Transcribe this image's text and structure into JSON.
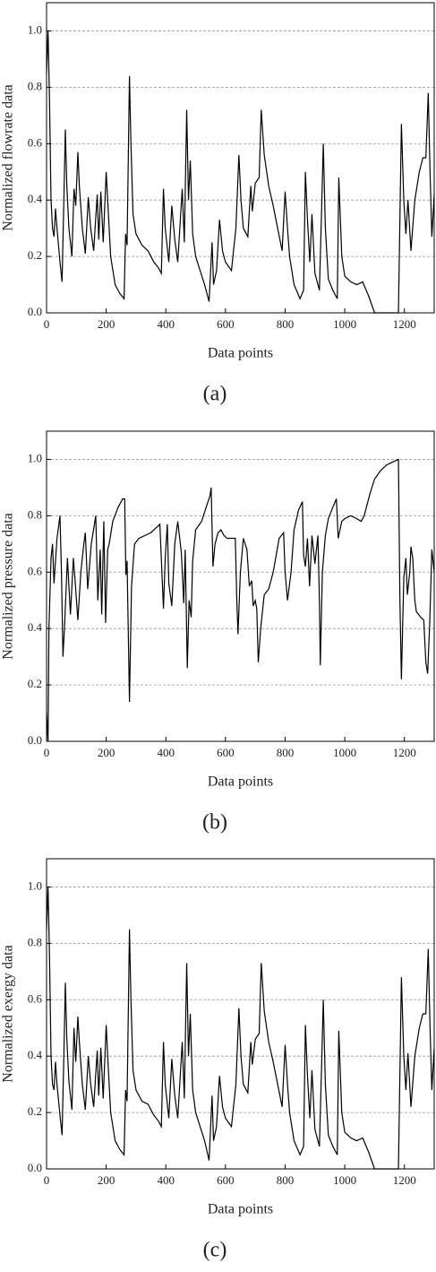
{
  "chart_data": [
    {
      "type": "line",
      "xlabel": "Data points",
      "ylabel": "Normalized flowrate data",
      "caption": "(a)",
      "xlim": [
        0,
        1300
      ],
      "xticks": [
        0,
        200,
        400,
        600,
        800,
        1000,
        1200
      ],
      "ylim": [
        0,
        1.1
      ],
      "yticks": [
        {
          "value": 0,
          "label": "0.0"
        },
        0.2,
        0.4,
        0.6,
        0.8,
        {
          "value": 1,
          "label": "1.0"
        }
      ],
      "grid": true,
      "x": [
        0,
        5,
        10,
        15,
        20,
        25,
        30,
        35,
        45,
        52,
        58,
        63,
        68,
        75,
        85,
        92,
        98,
        105,
        110,
        120,
        130,
        140,
        148,
        158,
        170,
        175,
        182,
        190,
        200,
        205,
        215,
        230,
        245,
        260,
        265,
        270,
        278,
        283,
        290,
        300,
        320,
        340,
        360,
        375,
        385,
        392,
        398,
        410,
        420,
        430,
        440,
        455,
        462,
        470,
        476,
        482,
        490,
        500,
        515,
        530,
        545,
        555,
        560,
        570,
        580,
        590,
        600,
        620,
        635,
        645,
        652,
        660,
        675,
        685,
        690,
        700,
        713,
        720,
        730,
        745,
        760,
        775,
        790,
        800,
        808,
        815,
        830,
        850,
        862,
        868,
        875,
        883,
        890,
        900,
        915,
        922,
        928,
        935,
        945,
        960,
        975,
        980,
        990,
        1000,
        1020,
        1040,
        1060,
        1080,
        1100,
        1180,
        1190,
        1198,
        1205,
        1212,
        1222,
        1235,
        1250,
        1262,
        1272,
        1280,
        1286,
        1292,
        1300
      ],
      "series": [
        {
          "color": "#000000",
          "values": [
            0.85,
            1.0,
            0.75,
            0.4,
            0.3,
            0.27,
            0.37,
            0.3,
            0.18,
            0.11,
            0.4,
            0.65,
            0.45,
            0.3,
            0.2,
            0.44,
            0.38,
            0.57,
            0.45,
            0.3,
            0.21,
            0.41,
            0.3,
            0.22,
            0.42,
            0.26,
            0.43,
            0.25,
            0.5,
            0.4,
            0.2,
            0.1,
            0.07,
            0.05,
            0.28,
            0.24,
            0.84,
            0.6,
            0.35,
            0.28,
            0.24,
            0.22,
            0.18,
            0.16,
            0.14,
            0.44,
            0.3,
            0.18,
            0.38,
            0.26,
            0.18,
            0.44,
            0.25,
            0.72,
            0.4,
            0.54,
            0.28,
            0.2,
            0.15,
            0.1,
            0.04,
            0.25,
            0.1,
            0.15,
            0.33,
            0.22,
            0.18,
            0.15,
            0.3,
            0.56,
            0.4,
            0.3,
            0.27,
            0.45,
            0.36,
            0.46,
            0.48,
            0.72,
            0.56,
            0.45,
            0.38,
            0.3,
            0.22,
            0.43,
            0.3,
            0.2,
            0.1,
            0.05,
            0.08,
            0.5,
            0.33,
            0.18,
            0.35,
            0.14,
            0.08,
            0.35,
            0.6,
            0.3,
            0.12,
            0.08,
            0.05,
            0.48,
            0.2,
            0.13,
            0.11,
            0.1,
            0.11,
            0.06,
            0,
            0,
            0.67,
            0.4,
            0.28,
            0.4,
            0.22,
            0.4,
            0.5,
            0.55,
            0.55,
            0.78,
            0.5,
            0.27,
            0.42
          ]
        }
      ]
    },
    {
      "type": "line",
      "xlabel": "Data points",
      "ylabel": "Normalized pressure data",
      "caption": "(b)",
      "xlim": [
        0,
        1300
      ],
      "xticks": [
        0,
        200,
        400,
        600,
        800,
        1000,
        1200
      ],
      "ylim": [
        0,
        1.1
      ],
      "yticks": [
        {
          "value": 0,
          "label": "0.0"
        },
        0.2,
        0.4,
        0.6,
        0.8,
        {
          "value": 1,
          "label": "1.0"
        }
      ],
      "grid": true,
      "x": [
        0,
        5,
        8,
        15,
        20,
        25,
        35,
        45,
        50,
        55,
        60,
        70,
        80,
        90,
        95,
        105,
        115,
        125,
        130,
        138,
        150,
        165,
        172,
        180,
        185,
        192,
        198,
        205,
        210,
        222,
        240,
        255,
        262,
        266,
        270,
        278,
        285,
        295,
        310,
        330,
        350,
        370,
        380,
        392,
        398,
        405,
        410,
        420,
        430,
        440,
        452,
        460,
        465,
        472,
        478,
        485,
        490,
        500,
        520,
        535,
        548,
        552,
        558,
        565,
        575,
        585,
        595,
        605,
        620,
        633,
        638,
        642,
        650,
        660,
        672,
        680,
        688,
        693,
        700,
        705,
        710,
        718,
        730,
        745,
        760,
        780,
        795,
        800,
        808,
        820,
        830,
        845,
        858,
        862,
        868,
        875,
        882,
        890,
        900,
        910,
        915,
        918,
        925,
        935,
        945,
        960,
        972,
        978,
        990,
        1000,
        1020,
        1040,
        1055,
        1065,
        1085,
        1100,
        1120,
        1140,
        1160,
        1180,
        1185,
        1190,
        1198,
        1205,
        1210,
        1218,
        1222,
        1228,
        1235,
        1240,
        1255,
        1265,
        1272,
        1278,
        1285,
        1292,
        1300
      ],
      "series": [
        {
          "color": "#000000",
          "values": [
            0.1,
            0,
            0.4,
            0.65,
            0.7,
            0.56,
            0.72,
            0.8,
            0.6,
            0.3,
            0.4,
            0.65,
            0.45,
            0.65,
            0.58,
            0.43,
            0.6,
            0.7,
            0.74,
            0.54,
            0.7,
            0.8,
            0.5,
            0.68,
            0.45,
            0.78,
            0.42,
            0.68,
            0.7,
            0.78,
            0.83,
            0.86,
            0.86,
            0.59,
            0.64,
            0.14,
            0.55,
            0.7,
            0.72,
            0.73,
            0.74,
            0.76,
            0.77,
            0.47,
            0.65,
            0.77,
            0.56,
            0.48,
            0.7,
            0.78,
            0.67,
            0.49,
            0.68,
            0.26,
            0.5,
            0.44,
            0.64,
            0.75,
            0.78,
            0.83,
            0.87,
            0.9,
            0.62,
            0.7,
            0.74,
            0.75,
            0.73,
            0.72,
            0.72,
            0.72,
            0.5,
            0.38,
            0.6,
            0.72,
            0.68,
            0.55,
            0.57,
            0.48,
            0.5,
            0.47,
            0.28,
            0.4,
            0.52,
            0.54,
            0.6,
            0.72,
            0.74,
            0.6,
            0.5,
            0.6,
            0.75,
            0.82,
            0.85,
            0.66,
            0.62,
            0.72,
            0.55,
            0.73,
            0.63,
            0.73,
            0.5,
            0.27,
            0.6,
            0.73,
            0.79,
            0.83,
            0.86,
            0.72,
            0.78,
            0.79,
            0.8,
            0.79,
            0.78,
            0.8,
            0.88,
            0.93,
            0.96,
            0.98,
            0.99,
            1.0,
            0.5,
            0.22,
            0.58,
            0.65,
            0.52,
            0.6,
            0.69,
            0.65,
            0.5,
            0.46,
            0.44,
            0.43,
            0.28,
            0.24,
            0.42,
            0.68,
            0.6
          ]
        }
      ]
    },
    {
      "type": "line",
      "xlabel": "Data points",
      "ylabel": "Normalized exergy data",
      "caption": "(c)",
      "xlim": [
        0,
        1300
      ],
      "xticks": [
        0,
        200,
        400,
        600,
        800,
        1000,
        1200
      ],
      "ylim": [
        0,
        1.1
      ],
      "yticks": [
        {
          "value": 0,
          "label": "0.0"
        },
        0.2,
        0.4,
        0.6,
        0.8,
        {
          "value": 1,
          "label": "1.0"
        }
      ],
      "grid": true,
      "x": [
        0,
        5,
        10,
        15,
        20,
        25,
        30,
        35,
        45,
        52,
        58,
        63,
        68,
        75,
        85,
        92,
        98,
        105,
        110,
        120,
        130,
        140,
        148,
        158,
        170,
        175,
        182,
        190,
        200,
        205,
        215,
        230,
        245,
        260,
        265,
        270,
        278,
        283,
        290,
        300,
        320,
        340,
        360,
        375,
        385,
        392,
        398,
        410,
        420,
        430,
        440,
        455,
        462,
        470,
        476,
        482,
        490,
        500,
        515,
        530,
        545,
        555,
        560,
        570,
        580,
        590,
        600,
        620,
        635,
        645,
        652,
        660,
        675,
        685,
        690,
        700,
        713,
        720,
        730,
        745,
        760,
        775,
        790,
        800,
        808,
        815,
        830,
        850,
        862,
        868,
        875,
        883,
        890,
        900,
        915,
        922,
        928,
        935,
        945,
        960,
        975,
        980,
        990,
        1000,
        1020,
        1040,
        1060,
        1080,
        1100,
        1180,
        1190,
        1198,
        1205,
        1212,
        1222,
        1235,
        1250,
        1262,
        1272,
        1280,
        1286,
        1292,
        1300
      ],
      "series": [
        {
          "color": "#000000",
          "values": [
            0.85,
            1.0,
            0.75,
            0.4,
            0.3,
            0.28,
            0.38,
            0.3,
            0.19,
            0.12,
            0.4,
            0.66,
            0.46,
            0.31,
            0.21,
            0.5,
            0.38,
            0.54,
            0.45,
            0.3,
            0.21,
            0.4,
            0.3,
            0.22,
            0.42,
            0.26,
            0.43,
            0.25,
            0.51,
            0.4,
            0.2,
            0.1,
            0.07,
            0.05,
            0.28,
            0.24,
            0.85,
            0.6,
            0.35,
            0.28,
            0.24,
            0.23,
            0.19,
            0.17,
            0.15,
            0.45,
            0.3,
            0.18,
            0.39,
            0.26,
            0.18,
            0.45,
            0.25,
            0.73,
            0.4,
            0.55,
            0.28,
            0.2,
            0.15,
            0.1,
            0.03,
            0.26,
            0.1,
            0.15,
            0.33,
            0.22,
            0.18,
            0.15,
            0.3,
            0.57,
            0.4,
            0.3,
            0.27,
            0.45,
            0.37,
            0.46,
            0.48,
            0.73,
            0.56,
            0.45,
            0.38,
            0.3,
            0.22,
            0.44,
            0.3,
            0.2,
            0.1,
            0.05,
            0.08,
            0.51,
            0.33,
            0.18,
            0.35,
            0.14,
            0.08,
            0.35,
            0.6,
            0.3,
            0.12,
            0.08,
            0.05,
            0.49,
            0.2,
            0.13,
            0.11,
            0.1,
            0.11,
            0.06,
            0,
            0,
            0.68,
            0.4,
            0.28,
            0.41,
            0.22,
            0.4,
            0.5,
            0.55,
            0.55,
            0.78,
            0.5,
            0.28,
            0.43
          ]
        }
      ]
    }
  ]
}
